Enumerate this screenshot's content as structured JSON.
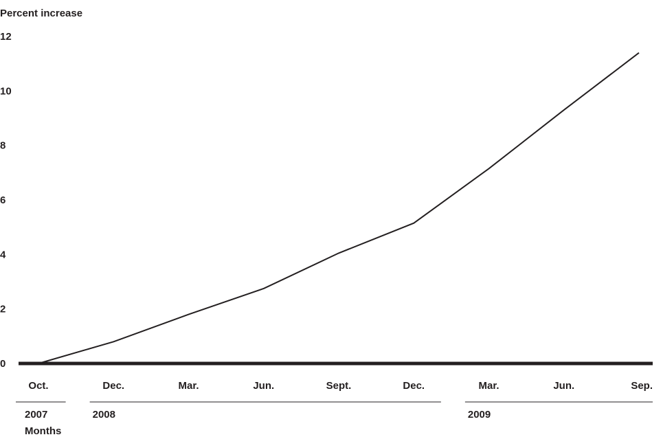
{
  "chart_data": {
    "type": "line",
    "title": "",
    "ylabel": "Percent increase",
    "xlabel": "Months",
    "ylim": [
      0,
      12
    ],
    "yticks": [
      0,
      2,
      4,
      6,
      8,
      10,
      12
    ],
    "categories": [
      "Oct.",
      "Dec.",
      "Mar.",
      "Jun.",
      "Sept.",
      "Dec.",
      "Mar.",
      "Jun.",
      "Sep."
    ],
    "year_groups": [
      {
        "label": "2007",
        "start": 0,
        "end": 0
      },
      {
        "label": "2008",
        "start": 1,
        "end": 5
      },
      {
        "label": "2009",
        "start": 6,
        "end": 8
      }
    ],
    "series": [
      {
        "values": [
          0,
          0.8,
          1.8,
          2.75,
          4.05,
          5.15,
          7.15,
          9.3,
          11.4
        ]
      }
    ],
    "grid": false,
    "legend": "none",
    "colors": {
      "line": "#231f20",
      "axis": "#231f20",
      "text": "#231f20"
    }
  }
}
